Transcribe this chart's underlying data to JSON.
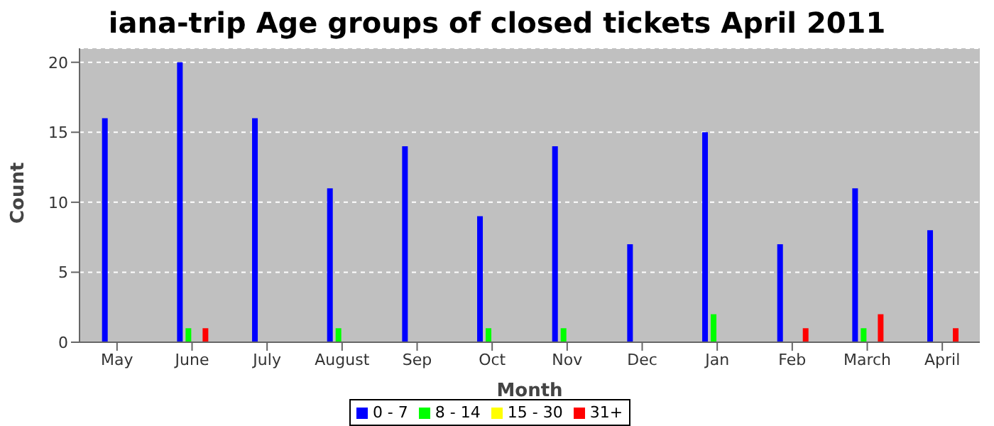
{
  "chart_data": {
    "type": "bar",
    "title": "iana-trip Age groups of closed tickets April 2011",
    "xlabel": "Month",
    "ylabel": "Count",
    "categories": [
      "May",
      "June",
      "July",
      "August",
      "Sep",
      "Oct",
      "Nov",
      "Dec",
      "Jan",
      "Feb",
      "March",
      "April"
    ],
    "series": [
      {
        "name": "0 - 7",
        "color": "#0000ff",
        "values": [
          16,
          20,
          16,
          11,
          14,
          9,
          14,
          7,
          15,
          7,
          11,
          8
        ]
      },
      {
        "name": "8 - 14",
        "color": "#00ff00",
        "values": [
          0,
          1,
          0,
          1,
          0,
          1,
          1,
          0,
          2,
          0,
          1,
          0
        ]
      },
      {
        "name": "15 - 30",
        "color": "#ffff00",
        "values": [
          0,
          0,
          0,
          0,
          0,
          0,
          0,
          0,
          0,
          0,
          0,
          0
        ]
      },
      {
        "name": "31+",
        "color": "#ff0000",
        "values": [
          0,
          1,
          0,
          0,
          0,
          0,
          0,
          0,
          0,
          1,
          2,
          1
        ]
      }
    ],
    "ylim": [
      0,
      21
    ],
    "yticks": [
      0,
      5,
      10,
      15,
      20
    ],
    "grid": "y",
    "legend": "bottom"
  }
}
